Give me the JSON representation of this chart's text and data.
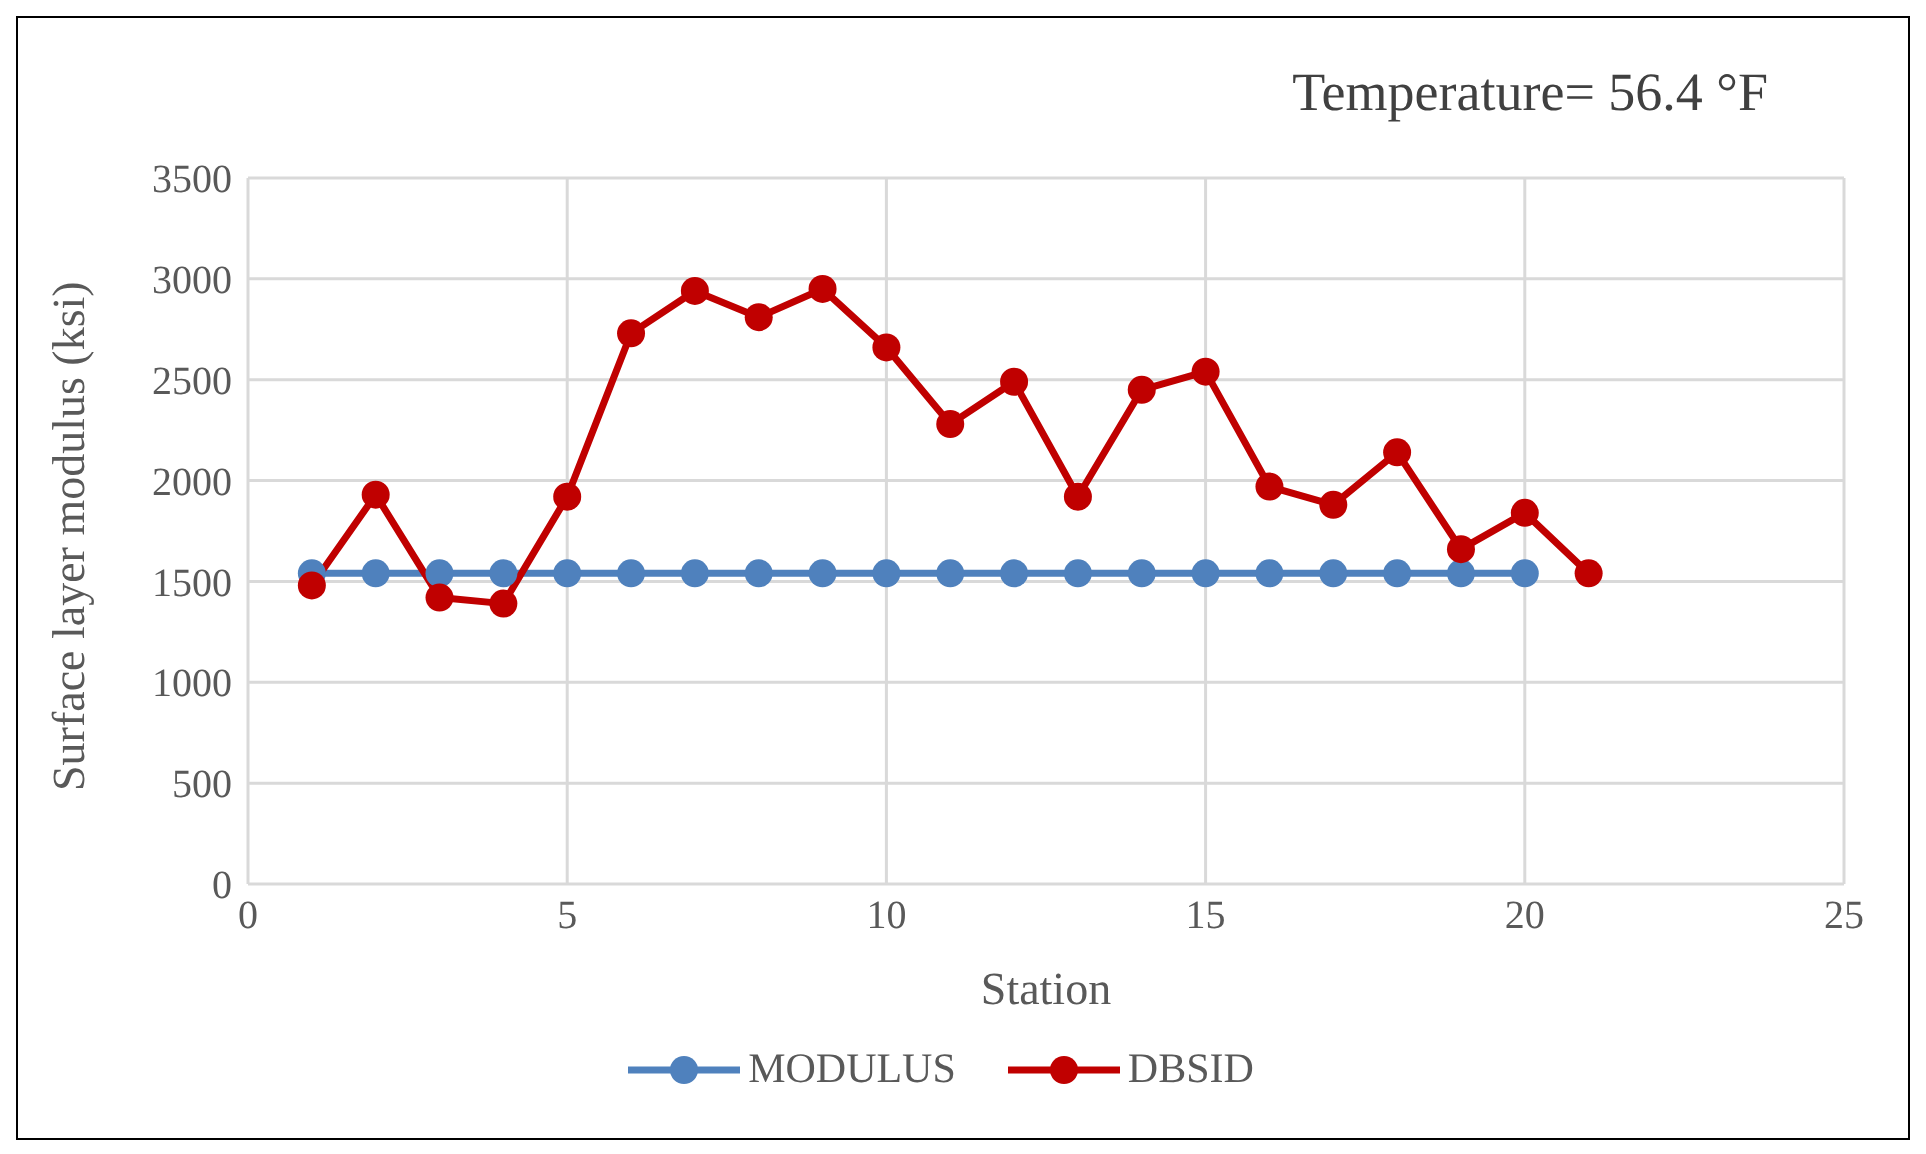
{
  "chart_data": {
    "type": "line",
    "annotations": [
      "Temperature= 56.4 °F"
    ],
    "xlabel": "Station",
    "ylabel": "Surface layer modulus (ksi)",
    "x": [
      1,
      2,
      3,
      4,
      5,
      6,
      7,
      8,
      9,
      10,
      11,
      12,
      13,
      14,
      15,
      16,
      17,
      18,
      19,
      20,
      21
    ],
    "series": [
      {
        "name": "MODULUS",
        "color": "#4f81bd",
        "x": [
          1,
          2,
          3,
          4,
          5,
          6,
          7,
          8,
          9,
          10,
          11,
          12,
          13,
          14,
          15,
          16,
          17,
          18,
          19,
          20
        ],
        "values": [
          1540,
          1540,
          1540,
          1540,
          1540,
          1540,
          1540,
          1540,
          1540,
          1540,
          1540,
          1540,
          1540,
          1540,
          1540,
          1540,
          1540,
          1540,
          1540,
          1540
        ]
      },
      {
        "name": "DBSID",
        "color": "#c00000",
        "values": [
          1480,
          1930,
          1420,
          1390,
          1920,
          2730,
          2940,
          2810,
          2950,
          2660,
          2280,
          2490,
          1920,
          2450,
          2540,
          1970,
          1880,
          2140,
          1660,
          1840,
          1540
        ]
      }
    ],
    "xlim": [
      0,
      25
    ],
    "xticks": [
      0,
      5,
      10,
      15,
      20,
      25
    ],
    "ylim": [
      0,
      3500
    ],
    "yticks": [
      0,
      500,
      1000,
      1500,
      2000,
      2500,
      3000,
      3500
    ],
    "grid": true,
    "legend": "bottom",
    "marker": "circle",
    "line_style": "solid"
  }
}
